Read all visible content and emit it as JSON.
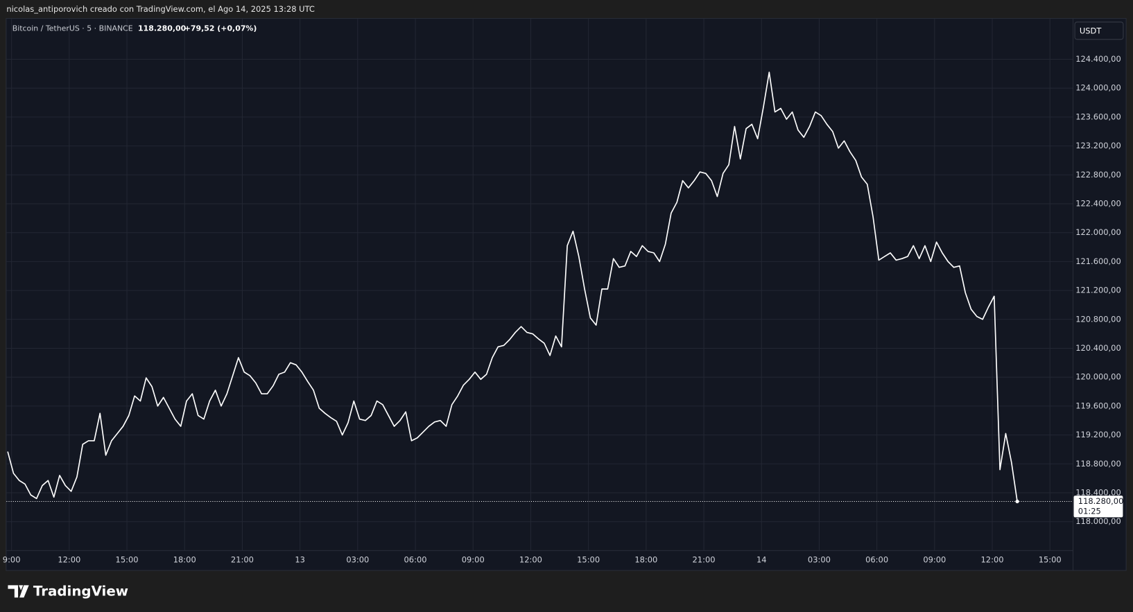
{
  "header": {
    "attribution": "nicolas_antiporovich creado con TradingView.com, el Ago 14, 2025 13:28 UTC",
    "symbol": "Bitcoin / TetherUS · 5 · BINANCE",
    "last": "118.280,00",
    "change": "+79,52 (+0,07%)",
    "currency_button": "USDT",
    "logo": "TradingView"
  },
  "chart_data": {
    "type": "line",
    "color": "#ffffff",
    "grid": true,
    "x": [
      8.8,
      9.1,
      9.4,
      9.7,
      10,
      10.3,
      10.6,
      10.9,
      11.2,
      11.5,
      11.8,
      12.1,
      12.4,
      12.7,
      13,
      13.3,
      13.6,
      13.9,
      14.2,
      14.5,
      14.8,
      15.1,
      15.4,
      15.7,
      16,
      16.3,
      16.6,
      16.9,
      17.2,
      17.5,
      17.8,
      18.1,
      18.4,
      18.7,
      19,
      19.3,
      19.6,
      19.9,
      20.2,
      20.5,
      20.8,
      21.1,
      21.4,
      21.7,
      22,
      22.3,
      22.6,
      22.9,
      23.2,
      23.5,
      23.8,
      24.1,
      24.4,
      24.7,
      25,
      25.3,
      25.6,
      25.9,
      26.2,
      26.5,
      26.8,
      27.1,
      27.4,
      27.7,
      28,
      28.3,
      28.6,
      28.9,
      29.2,
      29.5,
      29.8,
      30.1,
      30.4,
      30.7,
      31,
      31.3,
      31.6,
      31.9,
      32.2,
      32.5,
      32.8,
      33.1,
      33.4,
      33.7,
      34,
      34.3,
      34.6,
      34.9,
      35.2,
      35.5,
      35.8,
      36.1,
      36.4,
      36.7,
      37,
      37.3,
      37.6,
      37.9,
      38.2,
      38.5,
      38.8,
      39.1,
      39.4,
      39.7,
      40,
      40.3,
      40.6,
      40.9,
      41.2,
      41.5,
      41.8,
      42.1,
      42.4,
      42.7,
      43,
      43.3,
      43.6,
      43.9,
      44.2,
      44.5,
      44.8,
      45.1,
      45.4,
      45.7,
      46,
      46.3,
      46.6,
      46.9,
      47.2,
      47.5,
      47.8,
      48.1,
      48.4,
      48.7,
      49,
      49.3,
      49.6,
      49.9,
      50.2,
      50.5,
      50.8,
      51.1,
      51.4,
      51.7,
      52,
      52.3,
      52.6,
      52.9,
      53.2,
      53.5,
      53.8,
      54.1,
      54.4,
      54.7,
      55,
      55.3,
      55.6,
      55.9,
      56.2,
      56.5,
      56.8,
      57.1,
      57.4,
      57.7,
      58,
      58.3,
      58.6,
      58.9,
      59.2,
      59.5,
      59.8,
      60.1,
      60.4,
      60.7,
      61,
      61.3
    ],
    "values": [
      118970,
      118670,
      118570,
      118520,
      118370,
      118320,
      118500,
      118570,
      118340,
      118640,
      118500,
      118420,
      118620,
      119070,
      119120,
      119120,
      119500,
      118920,
      119120,
      119220,
      119320,
      119470,
      119740,
      119670,
      119990,
      119870,
      119600,
      119720,
      119570,
      119420,
      119320,
      119670,
      119770,
      119470,
      119420,
      119670,
      119820,
      119600,
      119770,
      120020,
      120270,
      120070,
      120020,
      119920,
      119770,
      119770,
      119880,
      120040,
      120070,
      120200,
      120170,
      120070,
      119940,
      119820,
      119570,
      119500,
      119440,
      119390,
      119200,
      119370,
      119670,
      119420,
      119400,
      119470,
      119670,
      119620,
      119470,
      119320,
      119400,
      119520,
      119120,
      119160,
      119240,
      119320,
      119380,
      119400,
      119320,
      119620,
      119740,
      119890,
      119970,
      120070,
      119970,
      120040,
      120270,
      120420,
      120440,
      120520,
      120620,
      120700,
      120620,
      120600,
      120530,
      120470,
      120300,
      120570,
      120420,
      121820,
      122020,
      121670,
      121220,
      120820,
      120720,
      121220,
      121220,
      121640,
      121520,
      121540,
      121740,
      121670,
      121820,
      121740,
      121720,
      121600,
      121840,
      122270,
      122420,
      122720,
      122620,
      122720,
      122840,
      122820,
      122720,
      122500,
      122820,
      122940,
      123470,
      123020,
      123440,
      123500,
      123300,
      123740,
      124220,
      123670,
      123720,
      123570,
      123670,
      123420,
      123320,
      123470,
      123670,
      123620,
      123500,
      123400,
      123170,
      123270,
      123120,
      123000,
      122770,
      122670,
      122220,
      121620,
      121670,
      121720,
      121620,
      121640,
      121670,
      121820,
      121640,
      121820,
      121600,
      121870,
      121720,
      121600,
      121520,
      121540,
      121170,
      120940,
      120840,
      120800,
      120970,
      121120,
      118720,
      119220,
      118820,
      118280
    ],
    "xlim": [
      8.7,
      64.2
    ],
    "xticks": [
      {
        "value": 9,
        "label": "9:00"
      },
      {
        "value": 12,
        "label": "12:00"
      },
      {
        "value": 15,
        "label": "15:00"
      },
      {
        "value": 18,
        "label": "18:00"
      },
      {
        "value": 21,
        "label": "21:00"
      },
      {
        "value": 24,
        "label": "13"
      },
      {
        "value": 27,
        "label": "03:00"
      },
      {
        "value": 30,
        "label": "06:00"
      },
      {
        "value": 33,
        "label": "09:00"
      },
      {
        "value": 36,
        "label": "12:00"
      },
      {
        "value": 39,
        "label": "15:00"
      },
      {
        "value": 42,
        "label": "18:00"
      },
      {
        "value": 45,
        "label": "21:00"
      },
      {
        "value": 48,
        "label": "14"
      },
      {
        "value": 51,
        "label": "03:00"
      },
      {
        "value": 54,
        "label": "06:00"
      },
      {
        "value": 57,
        "label": "09:00"
      },
      {
        "value": 60,
        "label": "12:00"
      },
      {
        "value": 63,
        "label": "15:00"
      }
    ],
    "ylim": [
      117600,
      124960
    ],
    "yticks": [
      {
        "value": 118000,
        "label": "118.000,00"
      },
      {
        "value": 118400,
        "label": "118.400,00"
      },
      {
        "value": 118800,
        "label": "118.800,00"
      },
      {
        "value": 119200,
        "label": "119.200,00"
      },
      {
        "value": 119600,
        "label": "119.600,00"
      },
      {
        "value": 120000,
        "label": "120.000,00"
      },
      {
        "value": 120400,
        "label": "120.400,00"
      },
      {
        "value": 120800,
        "label": "120.800,00"
      },
      {
        "value": 121200,
        "label": "121.200,00"
      },
      {
        "value": 121600,
        "label": "121.600,00"
      },
      {
        "value": 122000,
        "label": "122.000,00"
      },
      {
        "value": 122400,
        "label": "122.400,00"
      },
      {
        "value": 122800,
        "label": "122.800,00"
      },
      {
        "value": 123200,
        "label": "123.200,00"
      },
      {
        "value": 123600,
        "label": "123.600,00"
      },
      {
        "value": 124000,
        "label": "124.000,00"
      },
      {
        "value": 124400,
        "label": "124.400,00"
      }
    ],
    "last_price": {
      "value": 118280,
      "label": "118.280,00"
    },
    "countdown": "01:25"
  }
}
